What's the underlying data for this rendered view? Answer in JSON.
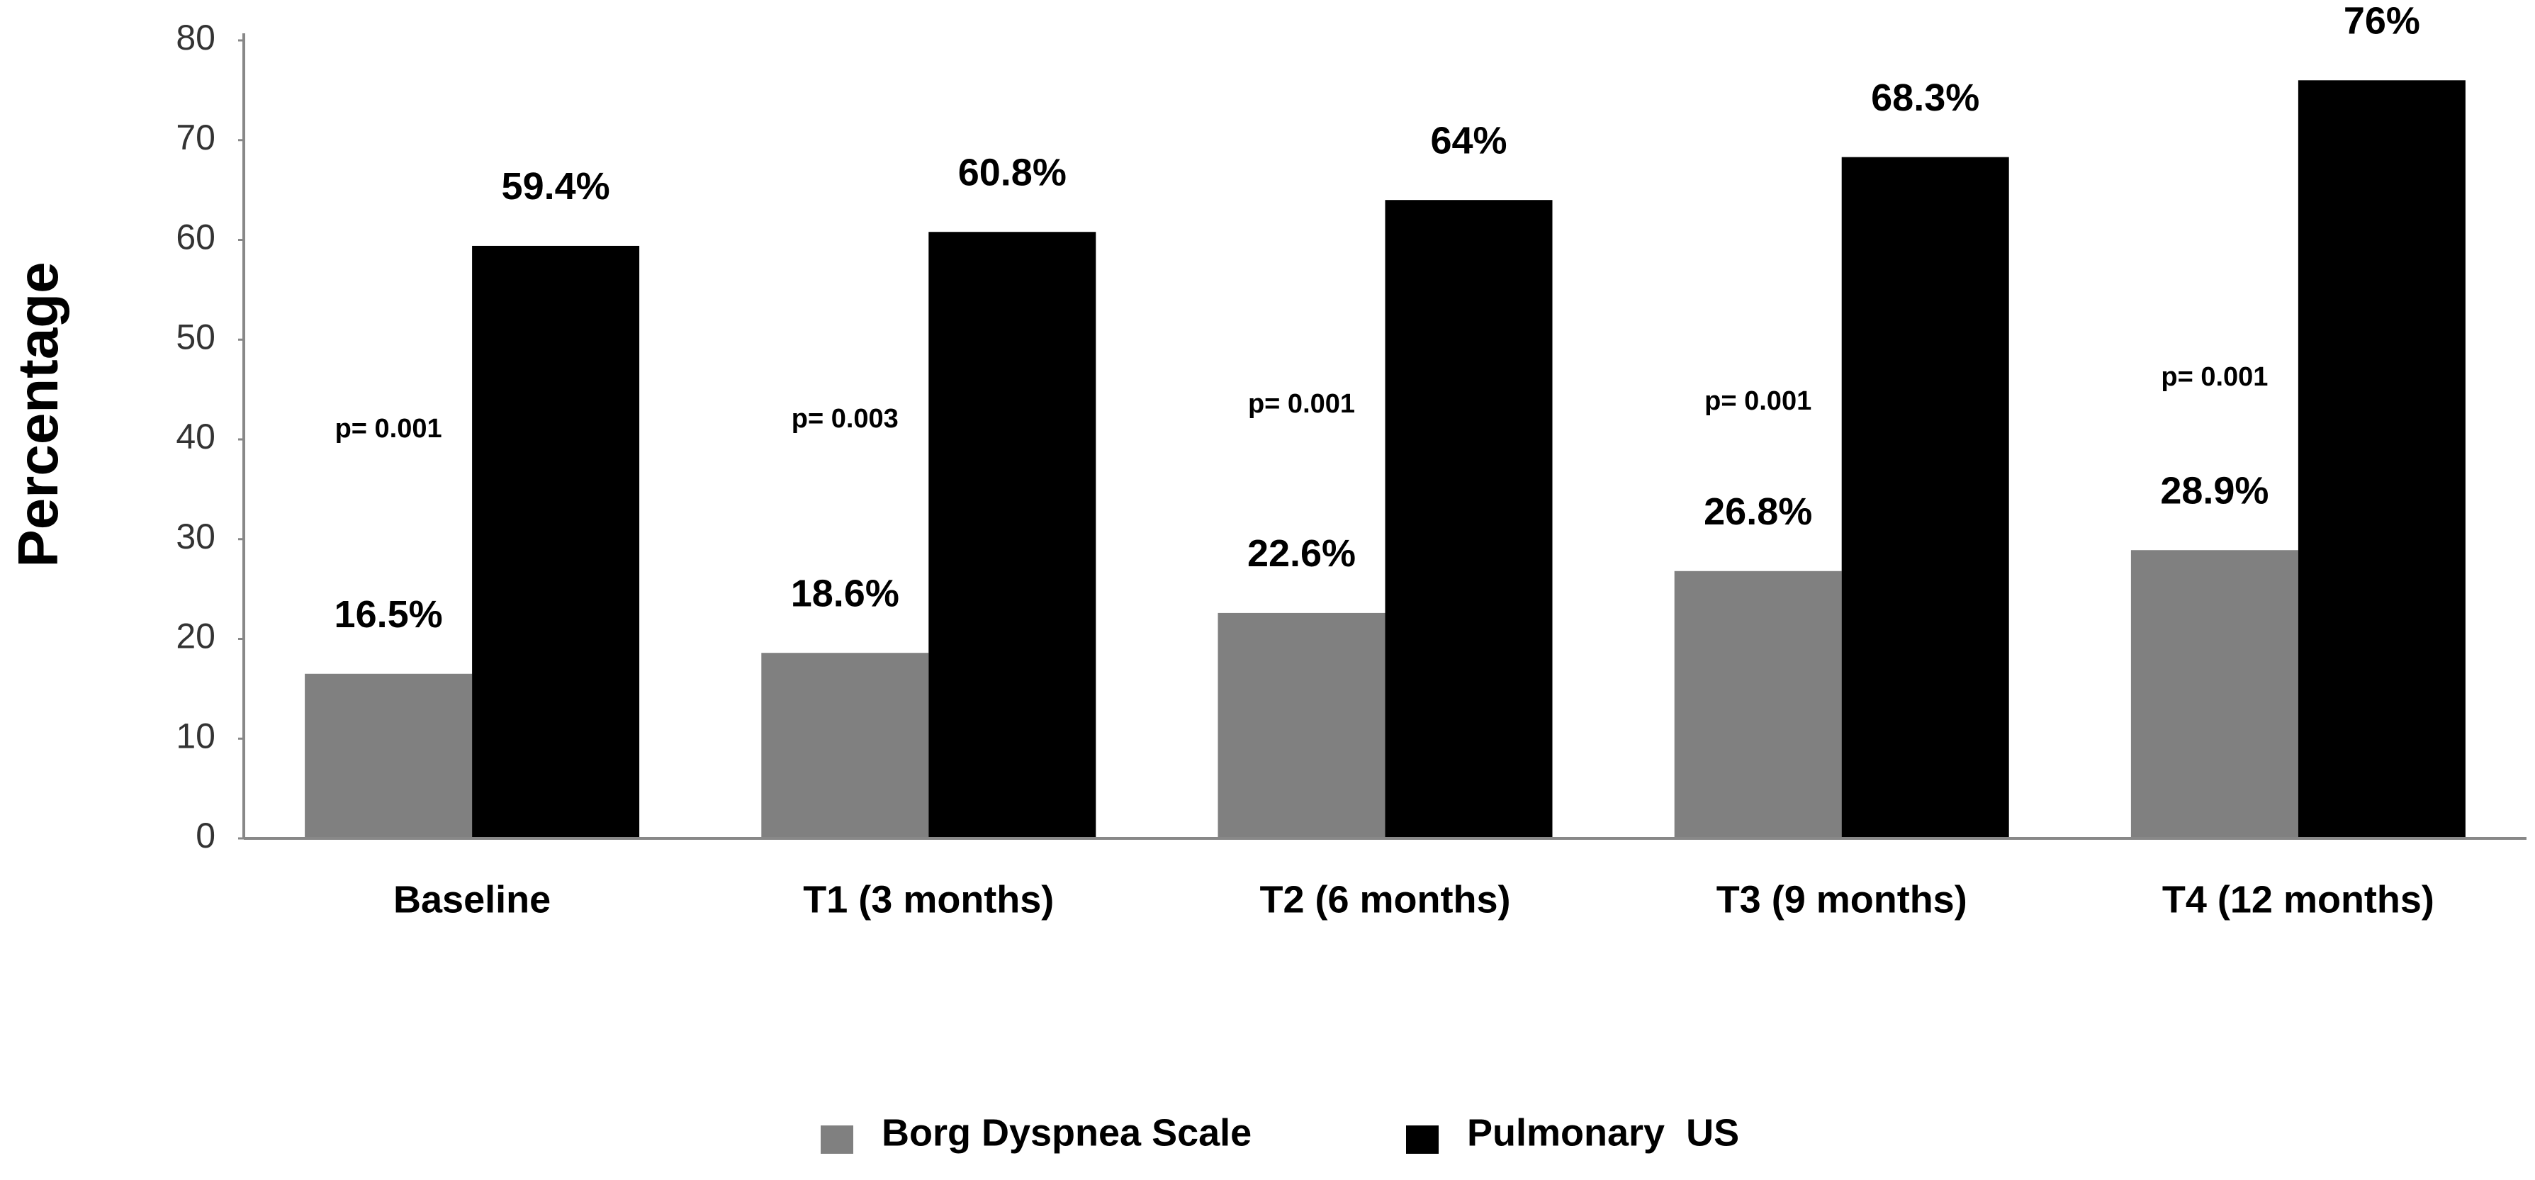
{
  "chart_data": {
    "type": "bar",
    "y_label": "Percentage",
    "categories": [
      "Baseline",
      "T1 (3 months)",
      "T2 (6 months)",
      "T3 (9 months)",
      "T4 (12 months)"
    ],
    "series": [
      {
        "name": "Borg Dyspnea Scale",
        "color": "#808080",
        "values": [
          16.5,
          18.6,
          22.6,
          26.8,
          28.9
        ],
        "value_labels": [
          "16.5%",
          "18.6%",
          "22.6%",
          "26.8%",
          "28.9%"
        ]
      },
      {
        "name": "Pulmonary  US",
        "color": "#000000",
        "values": [
          59.4,
          60.8,
          64,
          68.3,
          76
        ],
        "value_labels": [
          "59.4%",
          "60.8%",
          "64%",
          "68.3%",
          "76%"
        ]
      }
    ],
    "annotations": [
      "p= 0.001",
      "p= 0.003",
      "p= 0.001",
      "p= 0.001",
      "p= 0.001"
    ],
    "ylim": [
      0,
      80
    ],
    "yticks": [
      0,
      10,
      20,
      30,
      40,
      50,
      60,
      70,
      80
    ],
    "grid": false
  }
}
